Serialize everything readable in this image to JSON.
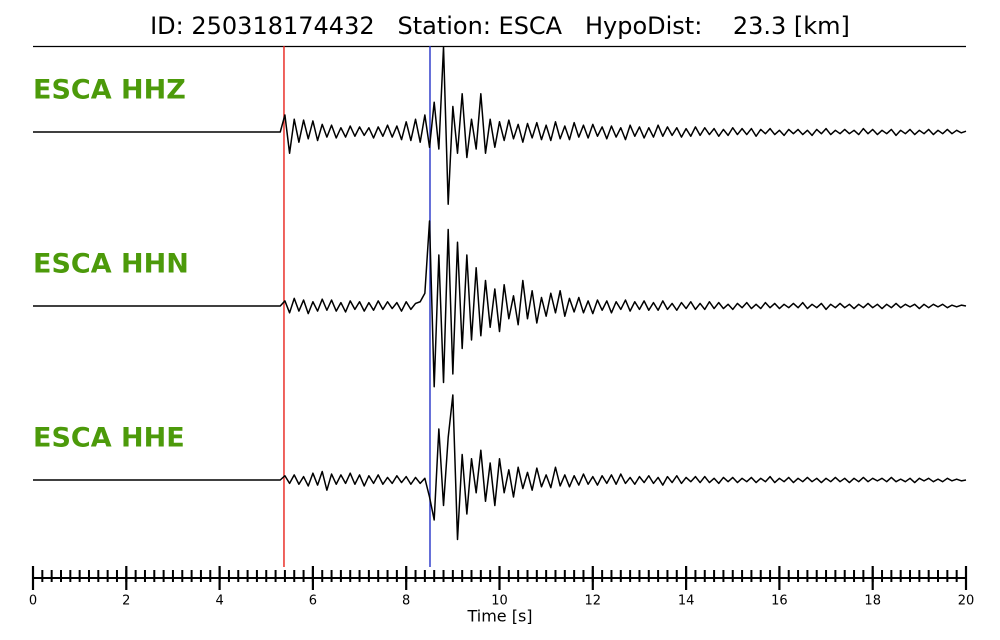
{
  "chart_data": {
    "type": "seismogram",
    "title": "ID: 250318174432   Station: ESCA   HypoDist:    23.3 [km]",
    "xlabel": "Time [s]",
    "xlim": [
      0,
      20
    ],
    "xticks": [
      0,
      2,
      4,
      6,
      8,
      10,
      12,
      14,
      16,
      18,
      20
    ],
    "xminor_step": 0.2,
    "ylim": [
      -10,
      10
    ],
    "label_color": "#4c9a0a",
    "trace_color": "#000000",
    "picks": [
      {
        "time": 5.38,
        "color": "#e8221b"
      },
      {
        "time": 8.51,
        "color": "#2432c8"
      }
    ],
    "x": [
      0,
      5.3,
      5.4,
      5.5,
      5.6,
      5.7,
      5.8,
      5.9,
      6.0,
      6.1,
      6.2,
      6.3,
      6.4,
      6.5,
      6.6,
      6.7,
      6.8,
      6.9,
      7.0,
      7.1,
      7.2,
      7.3,
      7.4,
      7.5,
      7.6,
      7.7,
      7.8,
      7.9,
      8.0,
      8.1,
      8.2,
      8.3,
      8.4,
      8.5,
      8.6,
      8.7,
      8.8,
      8.9,
      9.0,
      9.1,
      9.2,
      9.3,
      9.4,
      9.5,
      9.6,
      9.7,
      9.8,
      9.9,
      10.0,
      10.1,
      10.2,
      10.3,
      10.4,
      10.5,
      10.6,
      10.7,
      10.8,
      10.9,
      11.0,
      11.1,
      11.2,
      11.3,
      11.4,
      11.5,
      11.6,
      11.7,
      11.8,
      11.9,
      12.0,
      12.1,
      12.2,
      12.3,
      12.4,
      12.5,
      12.6,
      12.7,
      12.8,
      12.9,
      13.0,
      13.1,
      13.2,
      13.3,
      13.4,
      13.5,
      13.6,
      13.7,
      13.8,
      13.9,
      14.0,
      14.1,
      14.2,
      14.3,
      14.4,
      14.5,
      14.6,
      14.7,
      14.8,
      14.9,
      15.0,
      15.1,
      15.2,
      15.3,
      15.4,
      15.5,
      15.6,
      15.7,
      15.8,
      15.9,
      16.0,
      16.1,
      16.2,
      16.3,
      16.4,
      16.5,
      16.6,
      16.7,
      16.8,
      16.9,
      17.0,
      17.1,
      17.2,
      17.3,
      17.4,
      17.5,
      17.6,
      17.7,
      17.8,
      17.9,
      18.0,
      18.1,
      18.2,
      18.3,
      18.4,
      18.5,
      18.6,
      18.7,
      18.8,
      18.9,
      19.0,
      19.1,
      19.2,
      19.3,
      19.4,
      19.5,
      19.6,
      19.7,
      19.8,
      19.9,
      20.0
    ],
    "series": [
      {
        "name": "ESCA HHZ",
        "values": [
          0,
          0,
          2.0,
          -2.5,
          1.5,
          -1.2,
          1.4,
          -0.8,
          1.3,
          -1.0,
          0.9,
          -0.6,
          0.8,
          -0.7,
          0.5,
          -0.6,
          0.7,
          -0.5,
          0.6,
          -0.4,
          0.5,
          -0.7,
          0.6,
          -0.5,
          0.8,
          -0.6,
          0.7,
          -0.9,
          1.2,
          -1.0,
          1.5,
          -1.2,
          2.0,
          -1.8,
          3.5,
          -2.0,
          10,
          -8.5,
          3.0,
          -2.5,
          4.5,
          -3.0,
          1.5,
          -2.0,
          4.5,
          -2.5,
          1.5,
          -1.8,
          1.2,
          -1.0,
          1.4,
          -0.8,
          0.9,
          -1.2,
          1.0,
          -0.7,
          1.1,
          -0.9,
          0.8,
          -1.0,
          1.2,
          -0.8,
          0.7,
          -0.9,
          1.1,
          -0.6,
          0.8,
          -0.7,
          0.9,
          -0.5,
          0.6,
          -0.8,
          0.7,
          -0.6,
          0.5,
          -0.9,
          0.8,
          -0.5,
          0.6,
          -0.7,
          0.5,
          -0.6,
          0.8,
          -0.5,
          0.6,
          -0.4,
          0.5,
          -0.6,
          0.4,
          -0.5,
          0.6,
          -0.4,
          0.5,
          -0.3,
          0.4,
          -0.5,
          0.3,
          -0.4,
          0.5,
          -0.3,
          0.4,
          -0.3,
          0.4,
          -0.5,
          0.3,
          -0.2,
          0.4,
          -0.3,
          0.2,
          -0.4,
          0.3,
          -0.2,
          0.3,
          -0.3,
          0.2,
          -0.4,
          0.3,
          -0.2,
          0.4,
          -0.3,
          0.2,
          -0.2,
          0.3,
          -0.2,
          0.2,
          -0.3,
          0.4,
          -0.2,
          0.3,
          -0.3,
          0.2,
          -0.2,
          0.3,
          -0.4,
          0.2,
          -0.2,
          0.3,
          -0.3,
          0.2,
          -0.2,
          0.3,
          -0.3,
          0.2,
          -0.2,
          0.3,
          -0.2,
          0.2,
          -0.1,
          0.1
        ]
      },
      {
        "name": "ESCA HHN",
        "values": [
          0,
          0,
          0.6,
          -0.8,
          0.9,
          -0.6,
          0.7,
          -0.9,
          0.5,
          -0.6,
          0.8,
          -0.5,
          0.7,
          -0.6,
          0.4,
          -0.7,
          0.6,
          -0.4,
          0.5,
          -0.6,
          0.4,
          -0.5,
          0.6,
          -0.4,
          0.5,
          -0.3,
          0.4,
          -0.6,
          0.5,
          -0.4,
          0.3,
          0.5,
          1.5,
          10,
          -9.5,
          6,
          -9,
          9,
          -8,
          7.5,
          -5,
          6,
          -4,
          4.5,
          -3.5,
          3,
          -2.5,
          2,
          -3,
          2.5,
          -1.5,
          1.2,
          -2.2,
          3,
          -1.5,
          1.8,
          -2.0,
          1.0,
          -1.2,
          1.5,
          -0.8,
          1.8,
          -1.2,
          0.9,
          -0.7,
          1.0,
          -0.8,
          0.6,
          -0.9,
          0.7,
          -0.5,
          0.6,
          -0.8,
          0.5,
          -0.4,
          0.7,
          -0.6,
          0.5,
          -0.4,
          0.6,
          -0.5,
          0.4,
          -0.5,
          0.6,
          -0.4,
          0.3,
          -0.5,
          0.4,
          -0.3,
          0.5,
          -0.4,
          0.3,
          -0.4,
          0.5,
          -0.3,
          0.4,
          -0.3,
          0.2,
          -0.4,
          0.3,
          -0.2,
          0.4,
          -0.3,
          0.2,
          -0.3,
          0.4,
          -0.2,
          0.3,
          -0.3,
          0.2,
          -0.2,
          0.3,
          -0.2,
          0.4,
          -0.3,
          0.2,
          -0.2,
          0.3,
          -0.4,
          0.2,
          -0.2,
          0.3,
          -0.2,
          0.2,
          -0.3,
          0.2,
          -0.2,
          0.3,
          -0.2,
          0.2,
          -0.3,
          0.2,
          -0.2,
          0.3,
          -0.2,
          0.2,
          -0.1,
          0.2,
          -0.3,
          0.2,
          -0.2,
          0.2,
          -0.1,
          0.2,
          -0.2,
          0.1,
          -0.1,
          0.1,
          0
        ]
      },
      {
        "name": "ESCA HHE",
        "values": [
          0,
          0,
          0.5,
          -0.4,
          0.6,
          -0.5,
          0.4,
          -0.7,
          0.8,
          -0.6,
          1.0,
          -1.2,
          0.7,
          -0.5,
          0.6,
          -0.4,
          0.8,
          -0.5,
          0.6,
          -0.7,
          0.5,
          -0.4,
          0.6,
          -0.5,
          0.3,
          -0.4,
          0.5,
          -0.3,
          0.4,
          -0.5,
          0.3,
          -0.4,
          0.2,
          -2.0,
          -4.7,
          6.0,
          -3,
          5,
          10,
          -7,
          3,
          -4,
          2.5,
          -1.5,
          3.5,
          -2.5,
          2,
          -3,
          2.5,
          -1.5,
          1.2,
          -2,
          1.5,
          -1,
          0.9,
          -1.2,
          1.4,
          -0.8,
          0.6,
          -0.9,
          1.5,
          -0.7,
          0.6,
          -0.8,
          0.5,
          -0.6,
          0.7,
          -0.5,
          0.4,
          -0.6,
          0.5,
          -0.4,
          0.6,
          -0.5,
          0.7,
          -0.4,
          0.3,
          -0.5,
          0.4,
          -0.3,
          0.5,
          -0.4,
          0.3,
          -0.6,
          0.4,
          -0.3,
          0.5,
          -0.4,
          0.3,
          -0.2,
          0.4,
          -0.3,
          0.4,
          -0.3,
          0.2,
          -0.4,
          0.3,
          -0.2,
          0.3,
          -0.3,
          0.2,
          -0.2,
          0.3,
          -0.3,
          0.2,
          -0.2,
          0.4,
          -0.3,
          0.2,
          -0.2,
          0.3,
          -0.3,
          0.2,
          -0.2,
          0.3,
          -0.2,
          0.2,
          -0.3,
          0.2,
          -0.2,
          0.3,
          -0.2,
          0.2,
          -0.3,
          0.2,
          -0.2,
          0.3,
          -0.2,
          0.2,
          -0.1,
          0.2,
          -0.2,
          0.3,
          -0.2,
          0.1,
          -0.2,
          0.2,
          -0.3,
          0.2,
          -0.1,
          0.2,
          -0.2,
          0.1,
          -0.2,
          0.2,
          -0.1,
          0.1,
          -0.1,
          0
        ]
      }
    ]
  }
}
